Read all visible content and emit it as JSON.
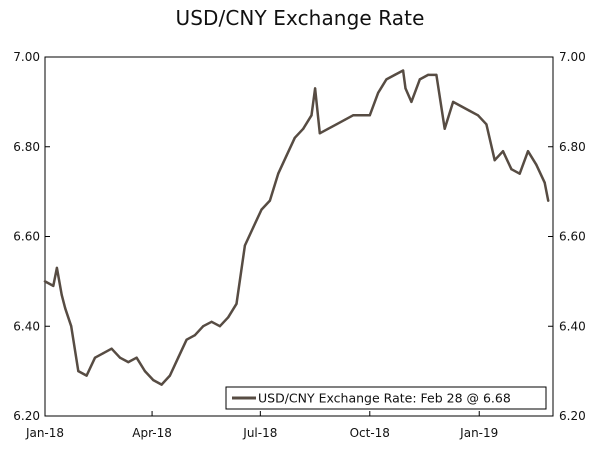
{
  "chart_data": {
    "type": "line",
    "title": "USD/CNY Exchange Rate",
    "xlabel": "",
    "ylabel": "",
    "ylim": [
      6.2,
      7.0
    ],
    "y_ticks": [
      "6.20",
      "6.40",
      "6.60",
      "6.80",
      "7.00"
    ],
    "x_ticks": [
      "Jan-18",
      "Apr-18",
      "Jul-18",
      "Oct-18",
      "Jan-19"
    ],
    "x_tick_dates": [
      "2018-01-01",
      "2018-04-01",
      "2018-07-01",
      "2018-10-01",
      "2019-01-01"
    ],
    "x_range": [
      "2018-01-01",
      "2019-03-04"
    ],
    "grid": false,
    "legend": {
      "position": "bottom-right",
      "label": "USD/CNY Exchange Rate: Feb 28 @ 6.68"
    },
    "colors": {
      "line": "#574c43",
      "axis": "#000000"
    },
    "series": [
      {
        "name": "USD/CNY Exchange Rate: Feb 28 @ 6.68",
        "x": [
          "2018-01-01",
          "2018-01-08",
          "2018-01-11",
          "2018-01-15",
          "2018-01-18",
          "2018-01-23",
          "2018-01-29",
          "2018-02-05",
          "2018-02-12",
          "2018-02-19",
          "2018-02-26",
          "2018-03-05",
          "2018-03-12",
          "2018-03-19",
          "2018-03-26",
          "2018-04-02",
          "2018-04-09",
          "2018-04-16",
          "2018-04-23",
          "2018-04-30",
          "2018-05-07",
          "2018-05-14",
          "2018-05-21",
          "2018-05-28",
          "2018-06-04",
          "2018-06-11",
          "2018-06-18",
          "2018-06-25",
          "2018-07-02",
          "2018-07-09",
          "2018-07-16",
          "2018-07-23",
          "2018-07-30",
          "2018-08-06",
          "2018-08-13",
          "2018-08-16",
          "2018-08-20",
          "2018-08-27",
          "2018-09-03",
          "2018-09-10",
          "2018-09-17",
          "2018-09-24",
          "2018-10-01",
          "2018-10-08",
          "2018-10-15",
          "2018-10-22",
          "2018-10-29",
          "2018-10-31",
          "2018-11-05",
          "2018-11-12",
          "2018-11-19",
          "2018-11-26",
          "2018-12-03",
          "2018-12-10",
          "2018-12-17",
          "2018-12-24",
          "2018-12-31",
          "2019-01-07",
          "2019-01-14",
          "2019-01-21",
          "2019-01-28",
          "2019-02-04",
          "2019-02-11",
          "2019-02-18",
          "2019-02-25",
          "2019-02-28"
        ],
        "values": [
          6.5,
          6.49,
          6.53,
          6.47,
          6.44,
          6.4,
          6.3,
          6.29,
          6.33,
          6.34,
          6.35,
          6.33,
          6.32,
          6.33,
          6.3,
          6.28,
          6.27,
          6.29,
          6.33,
          6.37,
          6.38,
          6.4,
          6.41,
          6.4,
          6.42,
          6.45,
          6.58,
          6.62,
          6.66,
          6.68,
          6.74,
          6.78,
          6.82,
          6.84,
          6.87,
          6.93,
          6.83,
          6.84,
          6.85,
          6.86,
          6.87,
          6.87,
          6.87,
          6.92,
          6.95,
          6.96,
          6.97,
          6.93,
          6.9,
          6.95,
          6.96,
          6.96,
          6.84,
          6.9,
          6.89,
          6.88,
          6.87,
          6.85,
          6.77,
          6.79,
          6.75,
          6.74,
          6.79,
          6.76,
          6.72,
          6.68
        ]
      }
    ]
  }
}
